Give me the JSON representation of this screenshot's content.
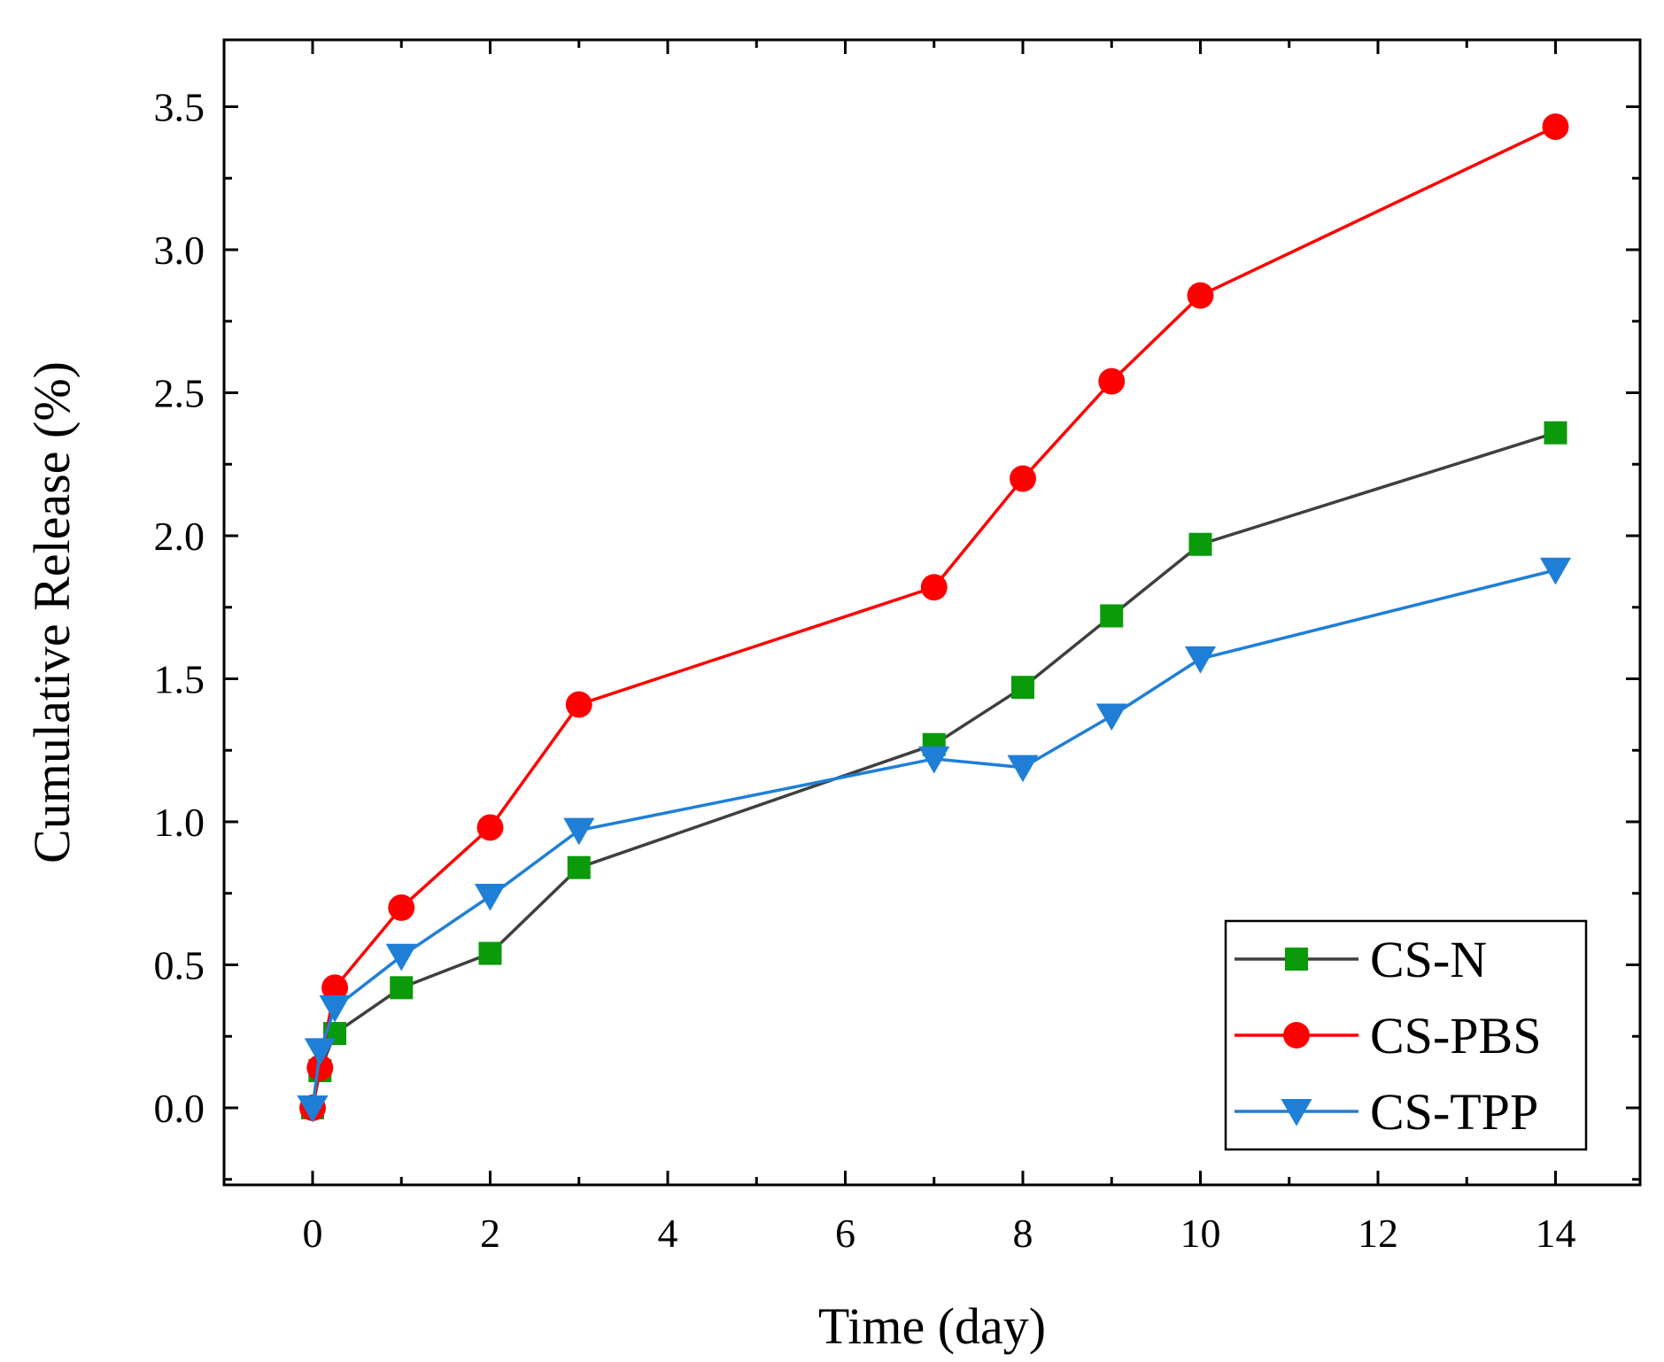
{
  "chart_data": {
    "type": "line",
    "title": "",
    "xlabel": "Time (day)",
    "ylabel": "Cumulative Release (%)",
    "xlim": [
      -1,
      15
    ],
    "ylim": [
      -0.25,
      3.75
    ],
    "xticks": [
      0,
      2,
      4,
      6,
      8,
      10,
      12,
      14
    ],
    "xtick_labels": [
      "0",
      "2",
      "4",
      "6",
      "8",
      "10",
      "12",
      "14"
    ],
    "yticks": [
      0,
      0.5,
      1.0,
      1.5,
      2.0,
      2.5,
      3.0,
      3.5
    ],
    "ytick_labels": [
      "0.0",
      "0.5",
      "1.0",
      "1.5",
      "2.0",
      "2.5",
      "3.0",
      "3.5"
    ],
    "grid": false,
    "legend_position": "bottom-right",
    "series": [
      {
        "name": "CS-N",
        "color": "#3f3f3f",
        "marker_color": "#0a9a0a",
        "marker": "square",
        "x": [
          0,
          0.083,
          0.25,
          1,
          2,
          3,
          7,
          8,
          9,
          10,
          14
        ],
        "y": [
          0,
          0.13,
          0.26,
          0.42,
          0.54,
          0.84,
          1.27,
          1.47,
          1.72,
          1.97,
          2.36
        ]
      },
      {
        "name": "CS-PBS",
        "color": "#ff0000",
        "marker_color": "#ff0000",
        "marker": "circle",
        "x": [
          0,
          0.083,
          0.25,
          1,
          2,
          3,
          7,
          8,
          9,
          10,
          14
        ],
        "y": [
          0,
          0.14,
          0.42,
          0.7,
          0.98,
          1.41,
          1.82,
          2.2,
          2.54,
          2.84,
          3.43
        ]
      },
      {
        "name": "CS-TPP",
        "color": "#1f7fd6",
        "marker_color": "#1f7fd6",
        "marker": "triangle-down",
        "x": [
          0,
          0.083,
          0.25,
          1,
          2,
          3,
          7,
          8,
          9,
          10,
          14
        ],
        "y": [
          0,
          0.2,
          0.35,
          0.53,
          0.74,
          0.97,
          1.22,
          1.19,
          1.37,
          1.57,
          1.88
        ]
      }
    ]
  }
}
